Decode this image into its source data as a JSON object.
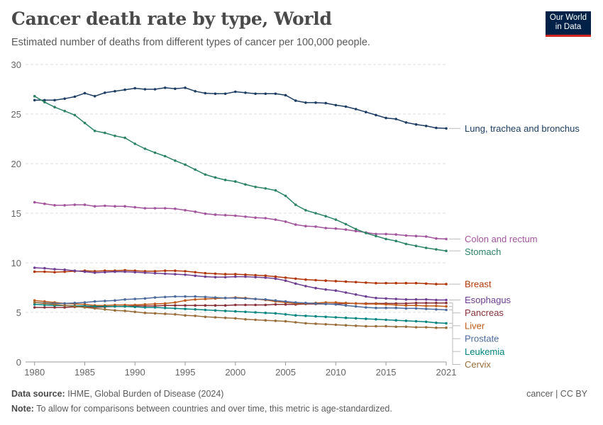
{
  "header": {
    "title": "Cancer death rate by type, World",
    "subtitle": "Estimated number of deaths from different types of cancer per 100,000 people.",
    "logo_line1": "Our World",
    "logo_line2": "in Data"
  },
  "footer": {
    "source_label": "Data source:",
    "source_text": "IHME, Global Burden of Disease (2024)",
    "note_label": "Note:",
    "note_text": "To allow for comparisons between countries and over time, this metric is age-standardized.",
    "license": "cancer | CC BY"
  },
  "chart_data": {
    "type": "line",
    "title": "Cancer death rate by type, World",
    "xlabel": "",
    "ylabel": "",
    "xlim": [
      1980,
      2021
    ],
    "ylim": [
      0,
      30
    ],
    "xticks": [
      1980,
      1985,
      1990,
      1995,
      2000,
      2005,
      2010,
      2015,
      2021
    ],
    "yticks": [
      0,
      5,
      10,
      15,
      20,
      25,
      30
    ],
    "grid": "horizontal dashed",
    "legend": "right end labels",
    "x": [
      1980,
      1981,
      1982,
      1983,
      1984,
      1985,
      1986,
      1987,
      1988,
      1989,
      1990,
      1991,
      1992,
      1993,
      1994,
      1995,
      1996,
      1997,
      1998,
      1999,
      2000,
      2001,
      2002,
      2003,
      2004,
      2005,
      2006,
      2007,
      2008,
      2009,
      2010,
      2011,
      2012,
      2013,
      2014,
      2015,
      2016,
      2017,
      2018,
      2019,
      2020,
      2021
    ],
    "series": [
      {
        "name": "Lung, trachea and bronchus",
        "color": "#1d3d63",
        "values": [
          26.4,
          26.4,
          26.4,
          26.55,
          26.75,
          27.1,
          26.8,
          27.15,
          27.3,
          27.45,
          27.6,
          27.5,
          27.5,
          27.65,
          27.55,
          27.65,
          27.3,
          27.1,
          27.05,
          27.05,
          27.25,
          27.15,
          27.05,
          27.05,
          27.05,
          26.9,
          26.35,
          26.15,
          26.15,
          26.1,
          25.9,
          25.75,
          25.5,
          25.2,
          24.9,
          24.6,
          24.5,
          24.15,
          23.95,
          23.8,
          23.6,
          23.55
        ]
      },
      {
        "name": "Colon and rectum",
        "color": "#a2559c",
        "values": [
          16.1,
          15.95,
          15.8,
          15.8,
          15.85,
          15.85,
          15.7,
          15.75,
          15.7,
          15.7,
          15.6,
          15.5,
          15.5,
          15.5,
          15.45,
          15.3,
          15.15,
          14.95,
          14.85,
          14.8,
          14.75,
          14.65,
          14.55,
          14.5,
          14.35,
          14.15,
          13.85,
          13.7,
          13.65,
          13.5,
          13.45,
          13.35,
          13.2,
          13.05,
          12.9,
          12.9,
          12.85,
          12.75,
          12.7,
          12.65,
          12.45,
          12.4
        ]
      },
      {
        "name": "Stomach",
        "color": "#2c8465",
        "values": [
          26.8,
          26.2,
          25.7,
          25.3,
          24.9,
          24.1,
          23.3,
          23.1,
          22.8,
          22.6,
          22.0,
          21.5,
          21.1,
          20.75,
          20.3,
          19.9,
          19.4,
          18.9,
          18.6,
          18.35,
          18.2,
          17.9,
          17.65,
          17.5,
          17.3,
          16.75,
          15.85,
          15.3,
          15.0,
          14.7,
          14.35,
          13.9,
          13.4,
          13.0,
          12.7,
          12.4,
          12.2,
          11.9,
          11.7,
          11.5,
          11.35,
          11.2
        ]
      },
      {
        "name": "Breast",
        "color": "#b13507",
        "values": [
          9.1,
          9.1,
          9.05,
          9.1,
          9.15,
          9.2,
          9.15,
          9.2,
          9.2,
          9.25,
          9.2,
          9.15,
          9.15,
          9.2,
          9.2,
          9.15,
          9.05,
          8.95,
          8.9,
          8.85,
          8.85,
          8.8,
          8.75,
          8.7,
          8.6,
          8.5,
          8.4,
          8.3,
          8.25,
          8.2,
          8.15,
          8.1,
          8.05,
          8.0,
          7.95,
          7.95,
          7.95,
          7.95,
          7.95,
          7.9,
          7.85,
          7.85
        ]
      },
      {
        "name": "Esophagus",
        "color": "#6d3e91",
        "values": [
          9.5,
          9.45,
          9.35,
          9.3,
          9.2,
          9.1,
          9.0,
          9.05,
          9.1,
          9.1,
          9.05,
          9.0,
          8.95,
          8.9,
          8.85,
          8.8,
          8.7,
          8.6,
          8.55,
          8.55,
          8.6,
          8.6,
          8.55,
          8.5,
          8.4,
          8.2,
          7.9,
          7.65,
          7.45,
          7.3,
          7.2,
          7.0,
          6.8,
          6.6,
          6.45,
          6.4,
          6.35,
          6.3,
          6.3,
          6.3,
          6.25,
          6.25
        ]
      },
      {
        "name": "Pancreas",
        "color": "#883039",
        "values": [
          5.5,
          5.5,
          5.5,
          5.5,
          5.55,
          5.55,
          5.5,
          5.55,
          5.6,
          5.6,
          5.65,
          5.65,
          5.65,
          5.7,
          5.7,
          5.7,
          5.7,
          5.7,
          5.7,
          5.7,
          5.75,
          5.75,
          5.75,
          5.75,
          5.8,
          5.8,
          5.8,
          5.85,
          5.85,
          5.85,
          5.85,
          5.9,
          5.9,
          5.9,
          5.9,
          5.9,
          5.9,
          5.9,
          5.95,
          5.95,
          5.95,
          5.95
        ]
      },
      {
        "name": "Liver",
        "color": "#c05917",
        "values": [
          6.2,
          6.1,
          6.0,
          5.9,
          5.85,
          5.8,
          5.7,
          5.7,
          5.75,
          5.75,
          5.75,
          5.8,
          5.85,
          5.9,
          6.0,
          6.2,
          6.3,
          6.35,
          6.4,
          6.45,
          6.5,
          6.45,
          6.35,
          6.25,
          6.1,
          6.0,
          5.9,
          5.9,
          5.95,
          6.0,
          6.0,
          5.95,
          5.9,
          5.85,
          5.85,
          5.8,
          5.75,
          5.7,
          5.7,
          5.65,
          5.65,
          5.6
        ]
      },
      {
        "name": "Prostate",
        "color": "#4c6a9c",
        "values": [
          6.0,
          5.95,
          5.9,
          5.9,
          5.95,
          6.0,
          6.1,
          6.15,
          6.2,
          6.3,
          6.35,
          6.4,
          6.5,
          6.55,
          6.6,
          6.6,
          6.6,
          6.55,
          6.5,
          6.45,
          6.45,
          6.4,
          6.35,
          6.3,
          6.2,
          6.1,
          6.0,
          5.95,
          5.9,
          5.85,
          5.8,
          5.7,
          5.6,
          5.5,
          5.45,
          5.45,
          5.45,
          5.4,
          5.4,
          5.35,
          5.3,
          5.25
        ]
      },
      {
        "name": "Leukemia",
        "color": "#00847e",
        "values": [
          5.8,
          5.75,
          5.7,
          5.7,
          5.65,
          5.65,
          5.6,
          5.6,
          5.6,
          5.6,
          5.55,
          5.5,
          5.5,
          5.45,
          5.4,
          5.35,
          5.3,
          5.25,
          5.2,
          5.15,
          5.1,
          5.05,
          5.0,
          4.95,
          4.9,
          4.8,
          4.7,
          4.65,
          4.6,
          4.55,
          4.5,
          4.45,
          4.4,
          4.35,
          4.3,
          4.25,
          4.2,
          4.15,
          4.1,
          4.05,
          3.95,
          3.9
        ]
      },
      {
        "name": "Cervix",
        "color": "#996d39",
        "values": [
          6.0,
          5.9,
          5.8,
          5.7,
          5.6,
          5.5,
          5.4,
          5.3,
          5.2,
          5.15,
          5.05,
          4.95,
          4.9,
          4.85,
          4.8,
          4.7,
          4.65,
          4.55,
          4.5,
          4.45,
          4.4,
          4.3,
          4.25,
          4.2,
          4.15,
          4.1,
          4.0,
          3.9,
          3.85,
          3.8,
          3.75,
          3.7,
          3.65,
          3.6,
          3.6,
          3.6,
          3.55,
          3.55,
          3.5,
          3.5,
          3.45,
          3.45
        ]
      }
    ]
  }
}
